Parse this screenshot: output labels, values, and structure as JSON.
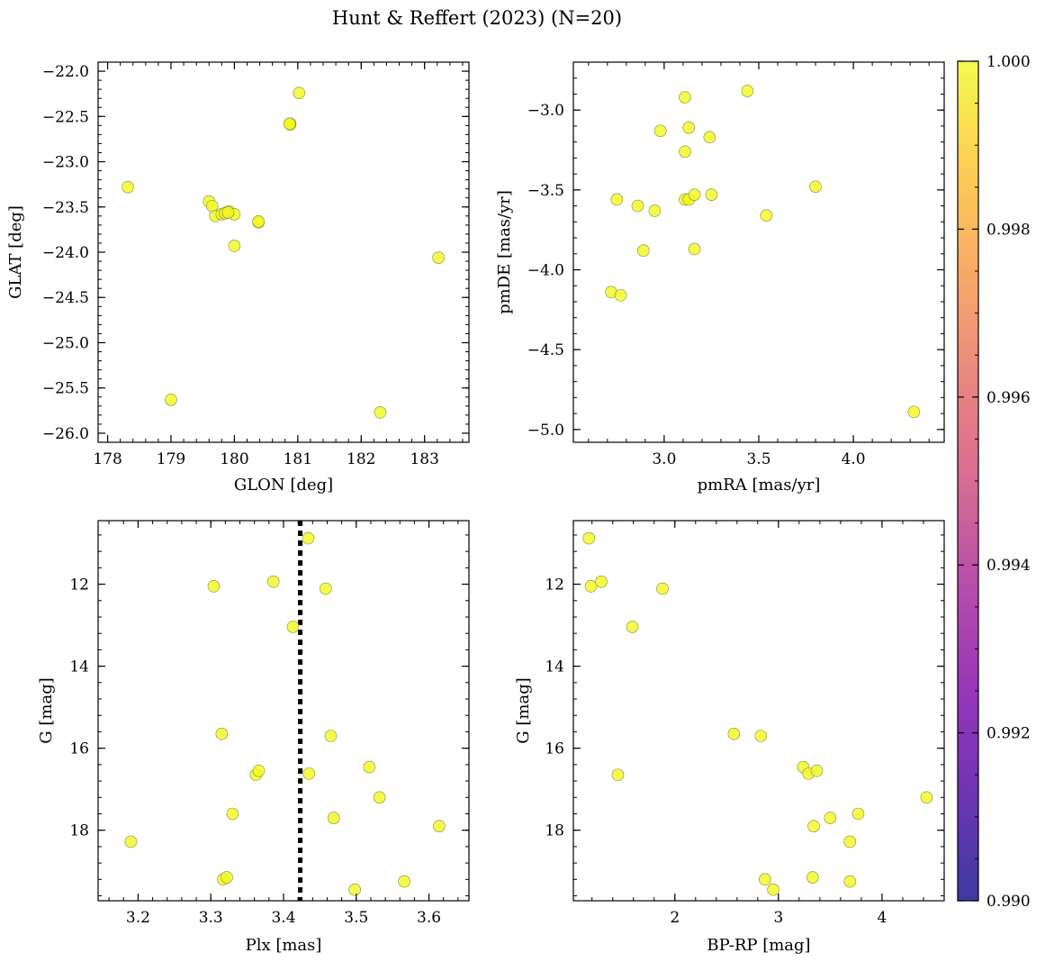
{
  "title": "Hunt & Reffert (2023) (N=20)",
  "colorbar": {
    "min": 0.99,
    "max": 1.0,
    "ticks": [
      0.99,
      0.992,
      0.994,
      0.996,
      0.998,
      1.0
    ],
    "tick_labels": [
      "0.990",
      "0.992",
      "0.994",
      "0.996",
      "0.998",
      "1.000"
    ],
    "colormap": "plasma"
  },
  "marker_color": "#f0f921",
  "chart_data": [
    {
      "type": "scatter",
      "id": "glon-glat",
      "xlabel": "GLON [deg]",
      "ylabel": "GLAT [deg]",
      "xlim": [
        177.85,
        183.7
      ],
      "ylim": [
        -26.1,
        -21.9
      ],
      "x_ticks": [
        178,
        179,
        180,
        181,
        182,
        183
      ],
      "x_tick_labels": [
        "178",
        "179",
        "180",
        "181",
        "182",
        "183"
      ],
      "y_ticks": [
        -22.0,
        -22.5,
        -23.0,
        -23.5,
        -24.0,
        -24.5,
        -25.0,
        -25.5,
        -26.0
      ],
      "y_tick_labels": [
        "−22.0",
        "−22.5",
        "−23.0",
        "−23.5",
        "−24.0",
        "−24.5",
        "−25.0",
        "−25.5",
        "−26.0"
      ],
      "points": [
        [
          178.32,
          -23.28
        ],
        [
          179.0,
          -25.63
        ],
        [
          179.6,
          -23.44
        ],
        [
          179.65,
          -23.49
        ],
        [
          179.7,
          -23.6
        ],
        [
          179.8,
          -23.58
        ],
        [
          179.88,
          -23.56
        ],
        [
          179.92,
          -23.55
        ],
        [
          180.0,
          -23.58
        ],
        [
          180.0,
          -23.93
        ],
        [
          180.38,
          -23.67
        ],
        [
          180.38,
          -23.66
        ],
        [
          180.88,
          -22.58
        ],
        [
          180.88,
          -22.59
        ],
        [
          181.02,
          -22.24
        ],
        [
          182.3,
          -25.77
        ],
        [
          183.22,
          -24.06
        ],
        [
          179.85,
          -23.57
        ],
        [
          179.9,
          -23.56
        ],
        [
          180.87,
          -22.58
        ]
      ]
    },
    {
      "type": "scatter",
      "id": "pmra-pmde",
      "xlabel": "pmRA [mas/yr]",
      "ylabel": "pmDE [mas/yr]",
      "xlim": [
        2.52,
        4.48
      ],
      "ylim": [
        -5.08,
        -2.7
      ],
      "x_ticks": [
        3.0,
        3.5,
        4.0
      ],
      "x_tick_labels": [
        "3.0",
        "3.5",
        "4.0"
      ],
      "y_ticks": [
        -3.0,
        -3.5,
        -4.0,
        -4.5,
        -5.0
      ],
      "y_tick_labels": [
        "−3.0",
        "−3.5",
        "−4.0",
        "−4.5",
        "−5.0"
      ],
      "points": [
        [
          2.72,
          -4.14
        ],
        [
          2.75,
          -3.56
        ],
        [
          2.77,
          -4.16
        ],
        [
          2.86,
          -3.6
        ],
        [
          2.89,
          -3.88
        ],
        [
          2.95,
          -3.63
        ],
        [
          2.98,
          -3.13
        ],
        [
          3.11,
          -2.92
        ],
        [
          3.11,
          -3.26
        ],
        [
          3.11,
          -3.56
        ],
        [
          3.13,
          -3.56
        ],
        [
          3.13,
          -3.11
        ],
        [
          3.16,
          -3.53
        ],
        [
          3.16,
          -3.87
        ],
        [
          3.24,
          -3.17
        ],
        [
          3.25,
          -3.53
        ],
        [
          3.44,
          -2.88
        ],
        [
          3.54,
          -3.66
        ],
        [
          3.8,
          -3.48
        ],
        [
          4.32,
          -4.89
        ]
      ]
    },
    {
      "type": "scatter",
      "id": "plx-g",
      "xlabel": "Plx [mas]",
      "ylabel": "G [mag]",
      "xlim": [
        3.145,
        3.655
      ],
      "ylim": [
        19.72,
        10.45
      ],
      "y_inverted": true,
      "x_ticks": [
        3.2,
        3.3,
        3.4,
        3.5,
        3.6
      ],
      "x_tick_labels": [
        "3.2",
        "3.3",
        "3.4",
        "3.5",
        "3.6"
      ],
      "y_ticks": [
        12,
        14,
        16,
        18
      ],
      "y_tick_labels": [
        "12",
        "14",
        "16",
        "18"
      ],
      "vline": 3.423,
      "points": [
        [
          3.19,
          18.28
        ],
        [
          3.304,
          12.05
        ],
        [
          3.315,
          15.65
        ],
        [
          3.317,
          19.2
        ],
        [
          3.322,
          19.15
        ],
        [
          3.33,
          17.6
        ],
        [
          3.362,
          16.65
        ],
        [
          3.366,
          16.55
        ],
        [
          3.386,
          11.94
        ],
        [
          3.413,
          13.04
        ],
        [
          3.434,
          10.88
        ],
        [
          3.435,
          16.62
        ],
        [
          3.458,
          12.11
        ],
        [
          3.465,
          15.7
        ],
        [
          3.469,
          17.7
        ],
        [
          3.498,
          19.45
        ],
        [
          3.518,
          16.46
        ],
        [
          3.532,
          17.2
        ],
        [
          3.566,
          19.25
        ],
        [
          3.614,
          17.9
        ]
      ]
    },
    {
      "type": "scatter",
      "id": "bprp-g",
      "xlabel": "BP-RP [mag]",
      "ylabel": "G [mag]",
      "xlim": [
        1.02,
        4.6
      ],
      "ylim": [
        19.72,
        10.45
      ],
      "y_inverted": true,
      "x_ticks": [
        2,
        3,
        4
      ],
      "x_tick_labels": [
        "2",
        "3",
        "4"
      ],
      "y_ticks": [
        12,
        14,
        16,
        18
      ],
      "y_tick_labels": [
        "12",
        "14",
        "16",
        "18"
      ],
      "points": [
        [
          1.17,
          10.88
        ],
        [
          1.19,
          12.05
        ],
        [
          1.29,
          11.94
        ],
        [
          1.45,
          16.65
        ],
        [
          1.59,
          13.04
        ],
        [
          1.88,
          12.11
        ],
        [
          2.57,
          15.65
        ],
        [
          2.83,
          15.7
        ],
        [
          2.87,
          19.2
        ],
        [
          2.95,
          19.45
        ],
        [
          3.24,
          16.46
        ],
        [
          3.29,
          16.62
        ],
        [
          3.33,
          19.15
        ],
        [
          3.34,
          17.9
        ],
        [
          3.37,
          16.55
        ],
        [
          3.5,
          17.7
        ],
        [
          3.69,
          18.28
        ],
        [
          3.69,
          19.25
        ],
        [
          3.77,
          17.6
        ],
        [
          4.43,
          17.2
        ]
      ]
    }
  ]
}
